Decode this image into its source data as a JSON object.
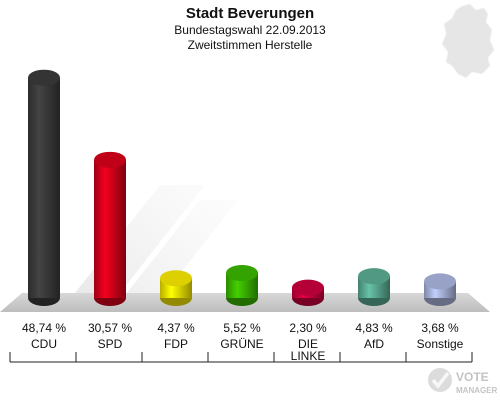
{
  "chart_data": {
    "type": "bar",
    "title": "Stadt Beverungen",
    "subtitle_1": "Bundestagswahl 22.09.2013",
    "subtitle_2": "Zweitstimmen Herstelle",
    "categories": [
      "CDU",
      "SPD",
      "FDP",
      "GRÜNE",
      "DIE LINKE",
      "AfD",
      "Sonstige"
    ],
    "category_lines": [
      [
        "CDU"
      ],
      [
        "SPD"
      ],
      [
        "FDP"
      ],
      [
        "GRÜNE"
      ],
      [
        "DIE",
        "LINKE"
      ],
      [
        "AfD"
      ],
      [
        "Sonstige"
      ]
    ],
    "values": [
      48.74,
      30.57,
      4.37,
      5.52,
      2.3,
      4.83,
      3.68
    ],
    "value_labels": [
      "48,74 %",
      "30,57 %",
      "4,37 %",
      "5,52 %",
      "2,30 %",
      "4,83 %",
      "3,68 %"
    ],
    "colors": [
      "#3a3a3a",
      "#d4001a",
      "#f5e600",
      "#3ab500",
      "#c8003c",
      "#5aaa92",
      "#a8b4dc"
    ],
    "ylim": [
      0,
      50
    ],
    "xlabel": "",
    "ylabel": ""
  },
  "watermark": {
    "text_line1": "VOTE",
    "text_line2": "MANAGER"
  },
  "map_icon": "germany-map-icon"
}
